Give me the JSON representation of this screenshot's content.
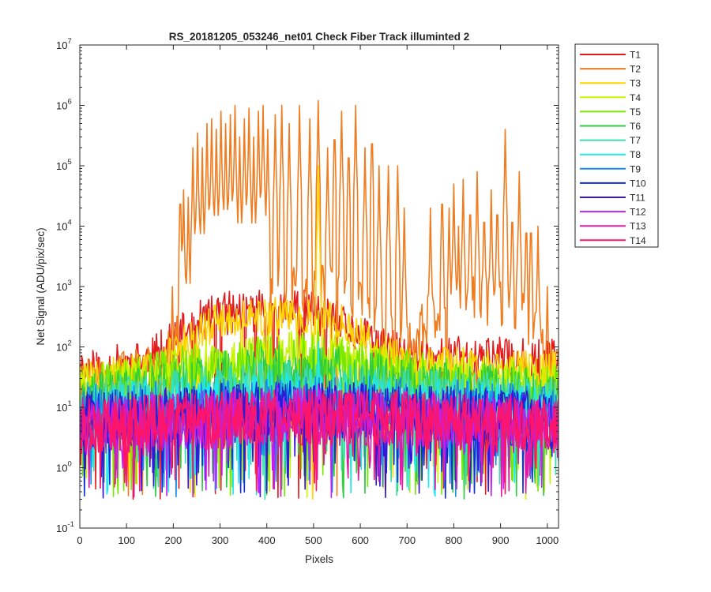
{
  "chart_data": {
    "type": "line",
    "title": "RS_20181205_053246_net01    Check Fiber      Track illuminted 2",
    "xlabel": "Pixels",
    "ylabel": "Net Signal (ADU/pix/sec)",
    "xlim": [
      0,
      1024
    ],
    "ylim": [
      0.1,
      10000000
    ],
    "yscale": "log",
    "grid": false,
    "legend_position": "outside-top-right",
    "xticks": [
      0,
      100,
      200,
      300,
      400,
      500,
      600,
      700,
      800,
      900,
      1000
    ],
    "yticks": [
      {
        "value": 0.1,
        "base": "10",
        "exp": "-1"
      },
      {
        "value": 1,
        "base": "10",
        "exp": "0"
      },
      {
        "value": 10,
        "base": "10",
        "exp": "1"
      },
      {
        "value": 100,
        "base": "10",
        "exp": "2"
      },
      {
        "value": 1000,
        "base": "10",
        "exp": "3"
      },
      {
        "value": 10000,
        "base": "10",
        "exp": "4"
      },
      {
        "value": 100000,
        "base": "10",
        "exp": "5"
      },
      {
        "value": 1000000,
        "base": "10",
        "exp": "6"
      },
      {
        "value": 10000000,
        "base": "10",
        "exp": "7"
      }
    ],
    "series": [
      {
        "name": "T1",
        "color": "#e41a1c",
        "envelope": [
          [
            0,
            40
          ],
          [
            150,
            60
          ],
          [
            200,
            120
          ],
          [
            250,
            250
          ],
          [
            300,
            350
          ],
          [
            350,
            400
          ],
          [
            400,
            420
          ],
          [
            450,
            400
          ],
          [
            500,
            380
          ],
          [
            550,
            250
          ],
          [
            600,
            150
          ],
          [
            650,
            90
          ],
          [
            700,
            70
          ],
          [
            1024,
            60
          ]
        ],
        "spikes": [
          [
            510,
            450
          ]
        ],
        "noise": 0.6,
        "dips": 16,
        "seed": 11
      },
      {
        "name": "T2",
        "color": "#f07c1f",
        "envelope": [
          [
            0,
            25
          ],
          [
            170,
            40
          ],
          [
            200,
            120
          ],
          [
            215,
            400
          ],
          [
            250,
            600
          ],
          [
            300,
            900
          ],
          [
            350,
            1000
          ],
          [
            400,
            1000
          ],
          [
            450,
            950
          ],
          [
            500,
            900
          ],
          [
            550,
            800
          ],
          [
            600,
            450
          ],
          [
            640,
            250
          ],
          [
            680,
            120
          ],
          [
            700,
            100
          ],
          [
            750,
            300
          ],
          [
            800,
            500
          ],
          [
            850,
            600
          ],
          [
            900,
            550
          ],
          [
            950,
            400
          ],
          [
            980,
            150
          ],
          [
            1000,
            60
          ],
          [
            1024,
            40
          ]
        ],
        "spikes": [
          [
            198,
            1000
          ],
          [
            215,
            60000
          ],
          [
            222,
            40000
          ],
          [
            232,
            30000
          ],
          [
            242,
            200000
          ],
          [
            252,
            350000
          ],
          [
            262,
            200000
          ],
          [
            272,
            500000
          ],
          [
            282,
            600000
          ],
          [
            292,
            400000
          ],
          [
            302,
            800000
          ],
          [
            312,
            500000
          ],
          [
            322,
            700000
          ],
          [
            332,
            1000000
          ],
          [
            342,
            300000
          ],
          [
            352,
            600000
          ],
          [
            362,
            900000
          ],
          [
            372,
            300000
          ],
          [
            382,
            800000
          ],
          [
            392,
            1000000
          ],
          [
            402,
            400000
          ],
          [
            418,
            700000
          ],
          [
            432,
            1000000
          ],
          [
            448,
            500000
          ],
          [
            470,
            1000000
          ],
          [
            492,
            600000
          ],
          [
            510,
            1200000
          ],
          [
            530,
            200000
          ],
          [
            545,
            700000
          ],
          [
            560,
            800000
          ],
          [
            575,
            350000
          ],
          [
            590,
            1000000
          ],
          [
            610,
            200000
          ],
          [
            625,
            600000
          ],
          [
            640,
            100000
          ],
          [
            660,
            100000
          ],
          [
            680,
            100000
          ],
          [
            694,
            20000
          ],
          [
            750,
            20000
          ],
          [
            775,
            60000
          ],
          [
            790,
            20000
          ],
          [
            800,
            50000
          ],
          [
            810,
            10000
          ],
          [
            820,
            60000
          ],
          [
            835,
            40000
          ],
          [
            850,
            80000
          ],
          [
            865,
            30000
          ],
          [
            880,
            40000
          ],
          [
            893,
            40000
          ],
          [
            910,
            400000
          ],
          [
            925,
            30000
          ],
          [
            940,
            80000
          ],
          [
            955,
            20000
          ],
          [
            965,
            20000
          ],
          [
            980,
            10000
          ],
          [
            1000,
            1000
          ]
        ],
        "noise": 0.7,
        "dips": 10,
        "seed": 22
      },
      {
        "name": "T3",
        "color": "#ffd400",
        "envelope": [
          [
            0,
            30
          ],
          [
            150,
            40
          ],
          [
            200,
            80
          ],
          [
            250,
            180
          ],
          [
            300,
            250
          ],
          [
            350,
            300
          ],
          [
            400,
            320
          ],
          [
            450,
            310
          ],
          [
            500,
            300
          ],
          [
            550,
            250
          ],
          [
            600,
            150
          ],
          [
            650,
            80
          ],
          [
            700,
            50
          ],
          [
            1024,
            40
          ]
        ],
        "spikes": [
          [
            490,
            600
          ],
          [
            510,
            100000
          ],
          [
            560,
            500
          ]
        ],
        "noise": 0.55,
        "dips": 12,
        "seed": 33
      },
      {
        "name": "T4",
        "color": "#c8f500",
        "envelope": [
          [
            0,
            20
          ],
          [
            150,
            30
          ],
          [
            250,
            55
          ],
          [
            400,
            70
          ],
          [
            500,
            80
          ],
          [
            600,
            60
          ],
          [
            700,
            35
          ],
          [
            1024,
            25
          ]
        ],
        "spikes": [
          [
            510,
            400
          ]
        ],
        "noise": 0.65,
        "dips": 14,
        "seed": 44
      },
      {
        "name": "T5",
        "color": "#78e800",
        "envelope": [
          [
            0,
            15
          ],
          [
            200,
            35
          ],
          [
            400,
            55
          ],
          [
            500,
            60
          ],
          [
            600,
            40
          ],
          [
            800,
            25
          ],
          [
            1024,
            18
          ]
        ],
        "spikes": [
          [
            510,
            180
          ]
        ],
        "noise": 0.75,
        "dips": 18,
        "seed": 55
      },
      {
        "name": "T6",
        "color": "#2ecc40",
        "envelope": [
          [
            0,
            12
          ],
          [
            300,
            30
          ],
          [
            500,
            40
          ],
          [
            700,
            22
          ],
          [
            1024,
            14
          ]
        ],
        "spikes": [],
        "noise": 0.8,
        "dips": 18,
        "seed": 66
      },
      {
        "name": "T7",
        "color": "#3cdcb0",
        "envelope": [
          [
            0,
            10
          ],
          [
            400,
            20
          ],
          [
            600,
            18
          ],
          [
            1024,
            10
          ]
        ],
        "spikes": [],
        "noise": 0.8,
        "dips": 16,
        "seed": 77
      },
      {
        "name": "T8",
        "color": "#1ee8f0",
        "envelope": [
          [
            0,
            8
          ],
          [
            500,
            15
          ],
          [
            1024,
            8
          ]
        ],
        "spikes": [
          [
            510,
            120
          ]
        ],
        "noise": 0.8,
        "dips": 16,
        "seed": 88
      },
      {
        "name": "T9",
        "color": "#1a8ce6",
        "envelope": [
          [
            0,
            8
          ],
          [
            500,
            12
          ],
          [
            1024,
            8
          ]
        ],
        "spikes": [],
        "noise": 0.8,
        "dips": 12,
        "seed": 99
      },
      {
        "name": "T10",
        "color": "#1030d8",
        "envelope": [
          [
            0,
            6
          ],
          [
            500,
            10
          ],
          [
            1024,
            6
          ]
        ],
        "spikes": [],
        "noise": 0.8,
        "dips": 14,
        "seed": 110
      },
      {
        "name": "T11",
        "color": "#3a14d8",
        "envelope": [
          [
            0,
            6
          ],
          [
            500,
            9
          ],
          [
            1024,
            6
          ]
        ],
        "spikes": [],
        "noise": 0.8,
        "dips": 12,
        "seed": 121
      },
      {
        "name": "T12",
        "color": "#c020f0",
        "envelope": [
          [
            0,
            5
          ],
          [
            500,
            8
          ],
          [
            1024,
            5
          ]
        ],
        "spikes": [],
        "noise": 0.8,
        "dips": 12,
        "seed": 132
      },
      {
        "name": "T13",
        "color": "#e01aa6",
        "envelope": [
          [
            0,
            5
          ],
          [
            500,
            7
          ],
          [
            1024,
            5
          ]
        ],
        "spikes": [],
        "noise": 0.8,
        "dips": 10,
        "seed": 143
      },
      {
        "name": "T14",
        "color": "#ff1466",
        "envelope": [
          [
            0,
            5
          ],
          [
            500,
            7
          ],
          [
            1024,
            5
          ]
        ],
        "spikes": [],
        "noise": 0.8,
        "dips": 10,
        "seed": 154
      }
    ]
  }
}
